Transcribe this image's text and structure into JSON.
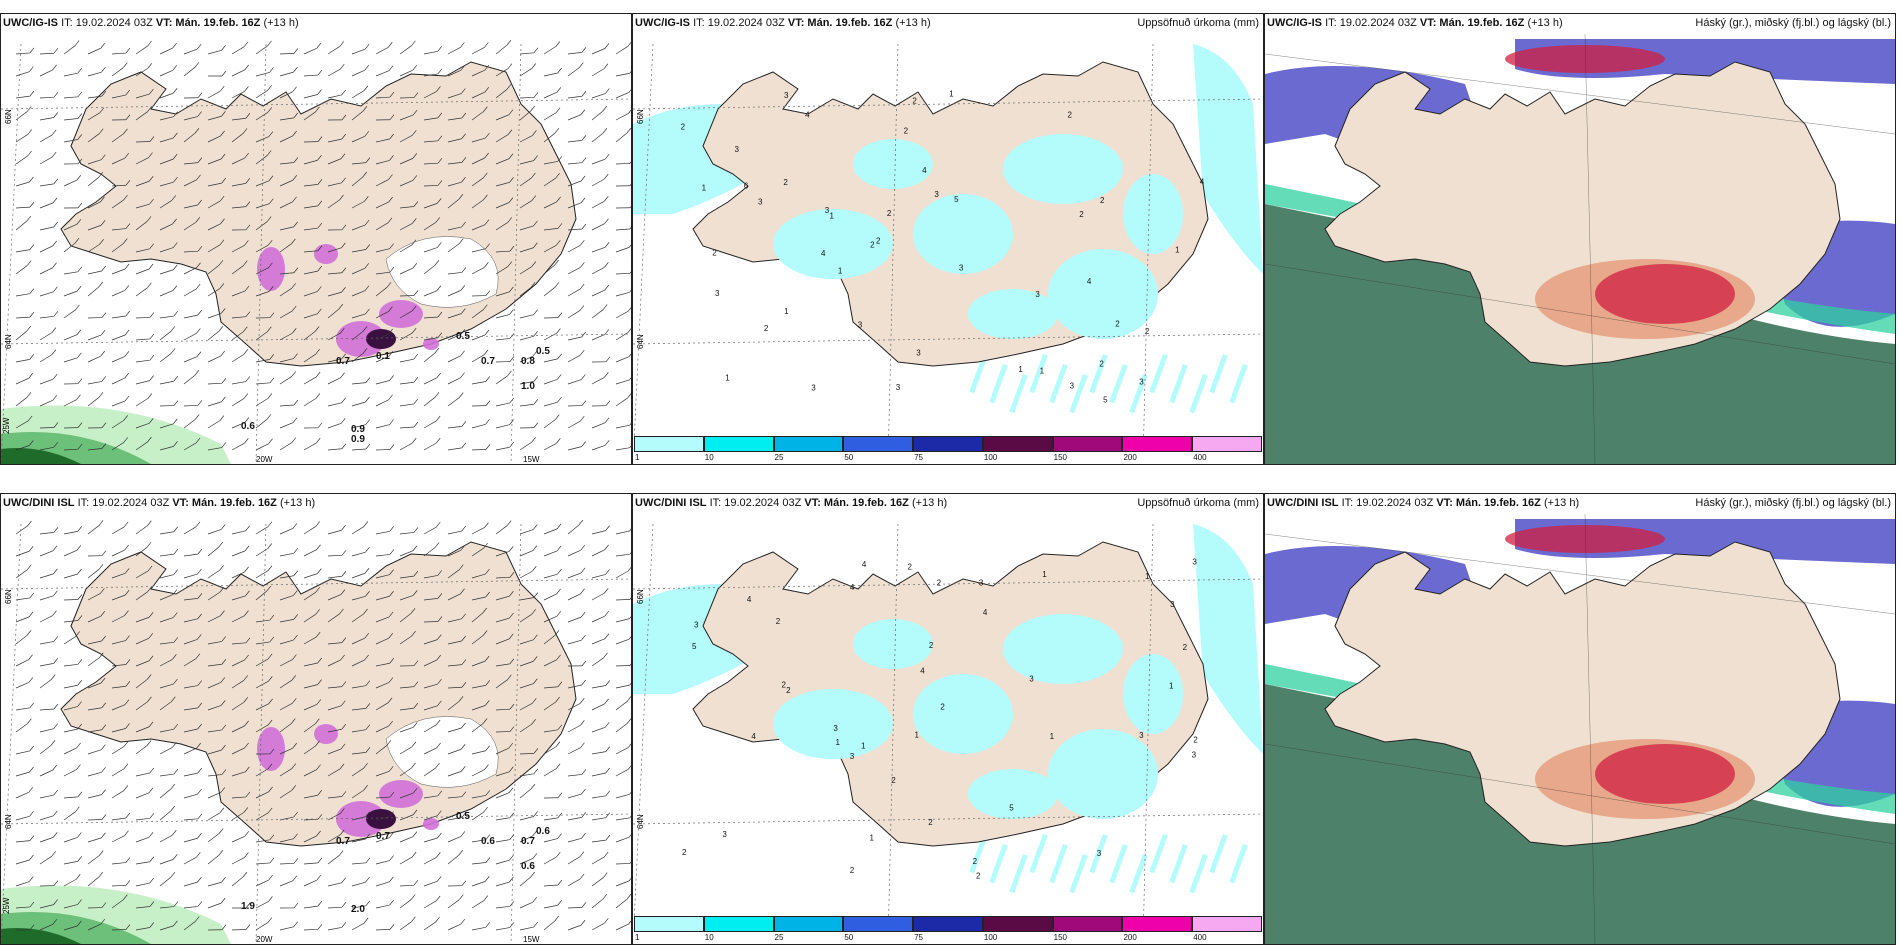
{
  "rows": [
    {
      "panels": [
        {
          "model": "UWC/IG-IS",
          "it": "IT: 19.02.2024 03Z",
          "vt_label": "VT:",
          "vt": "Mán. 19.feb. 16Z",
          "lead": "(+13 h)",
          "right": "",
          "type": "wind",
          "lat_labels": [
            "66N",
            "64N"
          ],
          "lon_labels": [
            "20W",
            "15W"
          ],
          "extra_lat": "25W",
          "values": [
            "0.7",
            "0.1",
            "0.5",
            "0.7",
            "0.8",
            "0.5",
            "1.0",
            "0.6",
            "0.9",
            "0.9"
          ]
        },
        {
          "model": "UWC/IG-IS",
          "it": "IT: 19.02.2024 03Z",
          "vt_label": "VT:",
          "vt": "Mán. 19.feb. 16Z",
          "lead": "(+13 h)",
          "right": "Uppsöfnuð úrkoma (mm)",
          "type": "precip",
          "lat_labels": [
            "66N",
            "64N"
          ],
          "values": [
            "2",
            "1",
            "3",
            "2",
            "4",
            "3",
            "3",
            "2",
            "1",
            "5",
            "2",
            "3",
            "2",
            "3",
            "1",
            "2",
            "4",
            "3",
            "2",
            "6",
            "3",
            "1",
            "2",
            "3",
            "3",
            "2",
            "1",
            "4",
            "2",
            "3",
            "5",
            "4",
            "2",
            "1",
            "3",
            "2",
            "3",
            "1",
            "2",
            "2",
            "3",
            "1",
            "4",
            "3",
            "2",
            "1"
          ]
        },
        {
          "model": "UWC/IG-IS",
          "it": "IT: 19.02.2024 03Z",
          "vt_label": "VT:",
          "vt": "Mán. 19.feb. 16Z",
          "lead": "(+13 h)",
          "right": "Háský (gr.), miðský (fj.bl.) og lágský (bl.)",
          "type": "cloud"
        }
      ]
    },
    {
      "panels": [
        {
          "model": "UWC/DINI ISL",
          "it": "IT: 19.02.2024 03Z",
          "vt_label": "VT:",
          "vt": "Mán. 19.feb. 16Z",
          "lead": "(+13 h)",
          "right": "",
          "type": "wind",
          "lat_labels": [
            "66N",
            "64N"
          ],
          "lon_labels": [
            "20W",
            "15W"
          ],
          "extra_lat": "25W",
          "values": [
            "0.7",
            "0.7",
            "0.5",
            "0.6",
            "0.7",
            "0.6",
            "0.6",
            "1.9",
            "2.0"
          ]
        },
        {
          "model": "UWC/DINI ISL",
          "it": "IT: 19.02.2024 03Z",
          "vt_label": "VT:",
          "vt": "Mán. 19.feb. 16Z",
          "lead": "(+13 h)",
          "right": "Uppsöfnuð úrkoma (mm)",
          "type": "precip",
          "lat_labels": [
            "66N",
            "64N"
          ],
          "values": [
            "2",
            "1",
            "3",
            "2",
            "4",
            "3",
            "2",
            "3",
            "2",
            "1",
            "2",
            "4",
            "3",
            "5",
            "2",
            "3",
            "1",
            "2",
            "4",
            "2",
            "3",
            "1",
            "2",
            "3",
            "5",
            "4",
            "2",
            "1",
            "3",
            "2",
            "1",
            "2",
            "3",
            "4",
            "2",
            "1",
            "3",
            "2",
            "4",
            "3",
            "2",
            "1"
          ]
        },
        {
          "model": "UWC/DINI ISL",
          "it": "IT: 19.02.2024 03Z",
          "vt_label": "VT:",
          "vt": "Mán. 19.feb. 16Z",
          "lead": "(+13 h)",
          "right": "Háský (gr.), miðský (fj.bl.) og lágský (bl.)",
          "type": "cloud"
        }
      ]
    }
  ],
  "colorbar": {
    "ticks": [
      "1",
      "10",
      "25",
      "50",
      "75",
      "100",
      "150",
      "200",
      "400"
    ],
    "colors": [
      "#b4fbfb",
      "#00eef0",
      "#00b3e6",
      "#2f5fe0",
      "#1c2aa8",
      "#5a0a45",
      "#a0097a",
      "#ee00aa",
      "#f6a8f0"
    ]
  },
  "colors": {
    "land": "#efe0d2",
    "coast": "#222222",
    "precip_light": "#b4fbfb",
    "snow_magenta": "#d070d8",
    "green_light": "#c8f0c8",
    "green_dark": "#1e6b2a",
    "high_cloud": "#2e6b50",
    "mid_cloud": "#5050c8",
    "low_cloud": "#d02040"
  }
}
